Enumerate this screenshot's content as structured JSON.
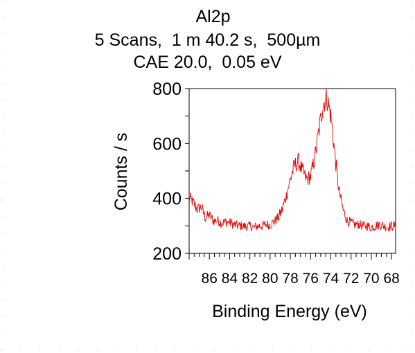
{
  "header": {
    "line1": "Al2p",
    "line2": "5 Scans,  1 m 40.2 s,  500µm",
    "line3": "CAE 20.0,  0.05 eV"
  },
  "chart_data": {
    "type": "line",
    "title": "Al2p",
    "subtitle": [
      "5 Scans,  1 m 40.2 s,  500µm",
      "CAE 20.0,  0.05 eV"
    ],
    "xlabel": "Binding Energy (eV)",
    "ylabel": "Counts / s",
    "xlim": [
      88,
      67.6
    ],
    "x_reversed": true,
    "ylim": [
      200,
      800
    ],
    "yticks": [
      200,
      400,
      600,
      800
    ],
    "ytick_labels": [
      "200",
      "400",
      "600",
      "800"
    ],
    "xticks": [
      86,
      84,
      82,
      80,
      78,
      76,
      74,
      72,
      70,
      68
    ],
    "xtick_labels": [
      "86",
      "84",
      "82",
      "80",
      "78",
      "76",
      "74",
      "72",
      "70",
      "68"
    ],
    "grid": false,
    "legend": "none",
    "series": [
      {
        "color": "#e00000",
        "points": [
          [
            88.0,
            405
          ],
          [
            87.6,
            385
          ],
          [
            87.2,
            360
          ],
          [
            86.8,
            370
          ],
          [
            86.4,
            330
          ],
          [
            86.0,
            340
          ],
          [
            85.6,
            318
          ],
          [
            85.2,
            320
          ],
          [
            84.8,
            310
          ],
          [
            84.4,
            315
          ],
          [
            84.0,
            312
          ],
          [
            83.6,
            305
          ],
          [
            83.2,
            300
          ],
          [
            82.8,
            300
          ],
          [
            82.4,
            298
          ],
          [
            82.0,
            300
          ],
          [
            81.6,
            295
          ],
          [
            81.2,
            300
          ],
          [
            80.8,
            300
          ],
          [
            80.4,
            305
          ],
          [
            80.0,
            305
          ],
          [
            79.6,
            315
          ],
          [
            79.2,
            330
          ],
          [
            78.8,
            360
          ],
          [
            78.4,
            410
          ],
          [
            78.0,
            470
          ],
          [
            77.6,
            520
          ],
          [
            77.2,
            535
          ],
          [
            76.8,
            500
          ],
          [
            76.4,
            470
          ],
          [
            76.0,
            480
          ],
          [
            75.6,
            545
          ],
          [
            75.2,
            640
          ],
          [
            74.8,
            740
          ],
          [
            74.4,
            770
          ],
          [
            74.0,
            700
          ],
          [
            73.6,
            560
          ],
          [
            73.2,
            430
          ],
          [
            72.8,
            360
          ],
          [
            72.4,
            320
          ],
          [
            72.0,
            310
          ],
          [
            71.6,
            305
          ],
          [
            71.2,
            305
          ],
          [
            70.8,
            300
          ],
          [
            70.4,
            300
          ],
          [
            70.0,
            295
          ],
          [
            69.6,
            300
          ],
          [
            69.2,
            305
          ],
          [
            68.8,
            300
          ],
          [
            68.4,
            295
          ],
          [
            68.0,
            300
          ],
          [
            67.6,
            300
          ]
        ]
      }
    ]
  }
}
